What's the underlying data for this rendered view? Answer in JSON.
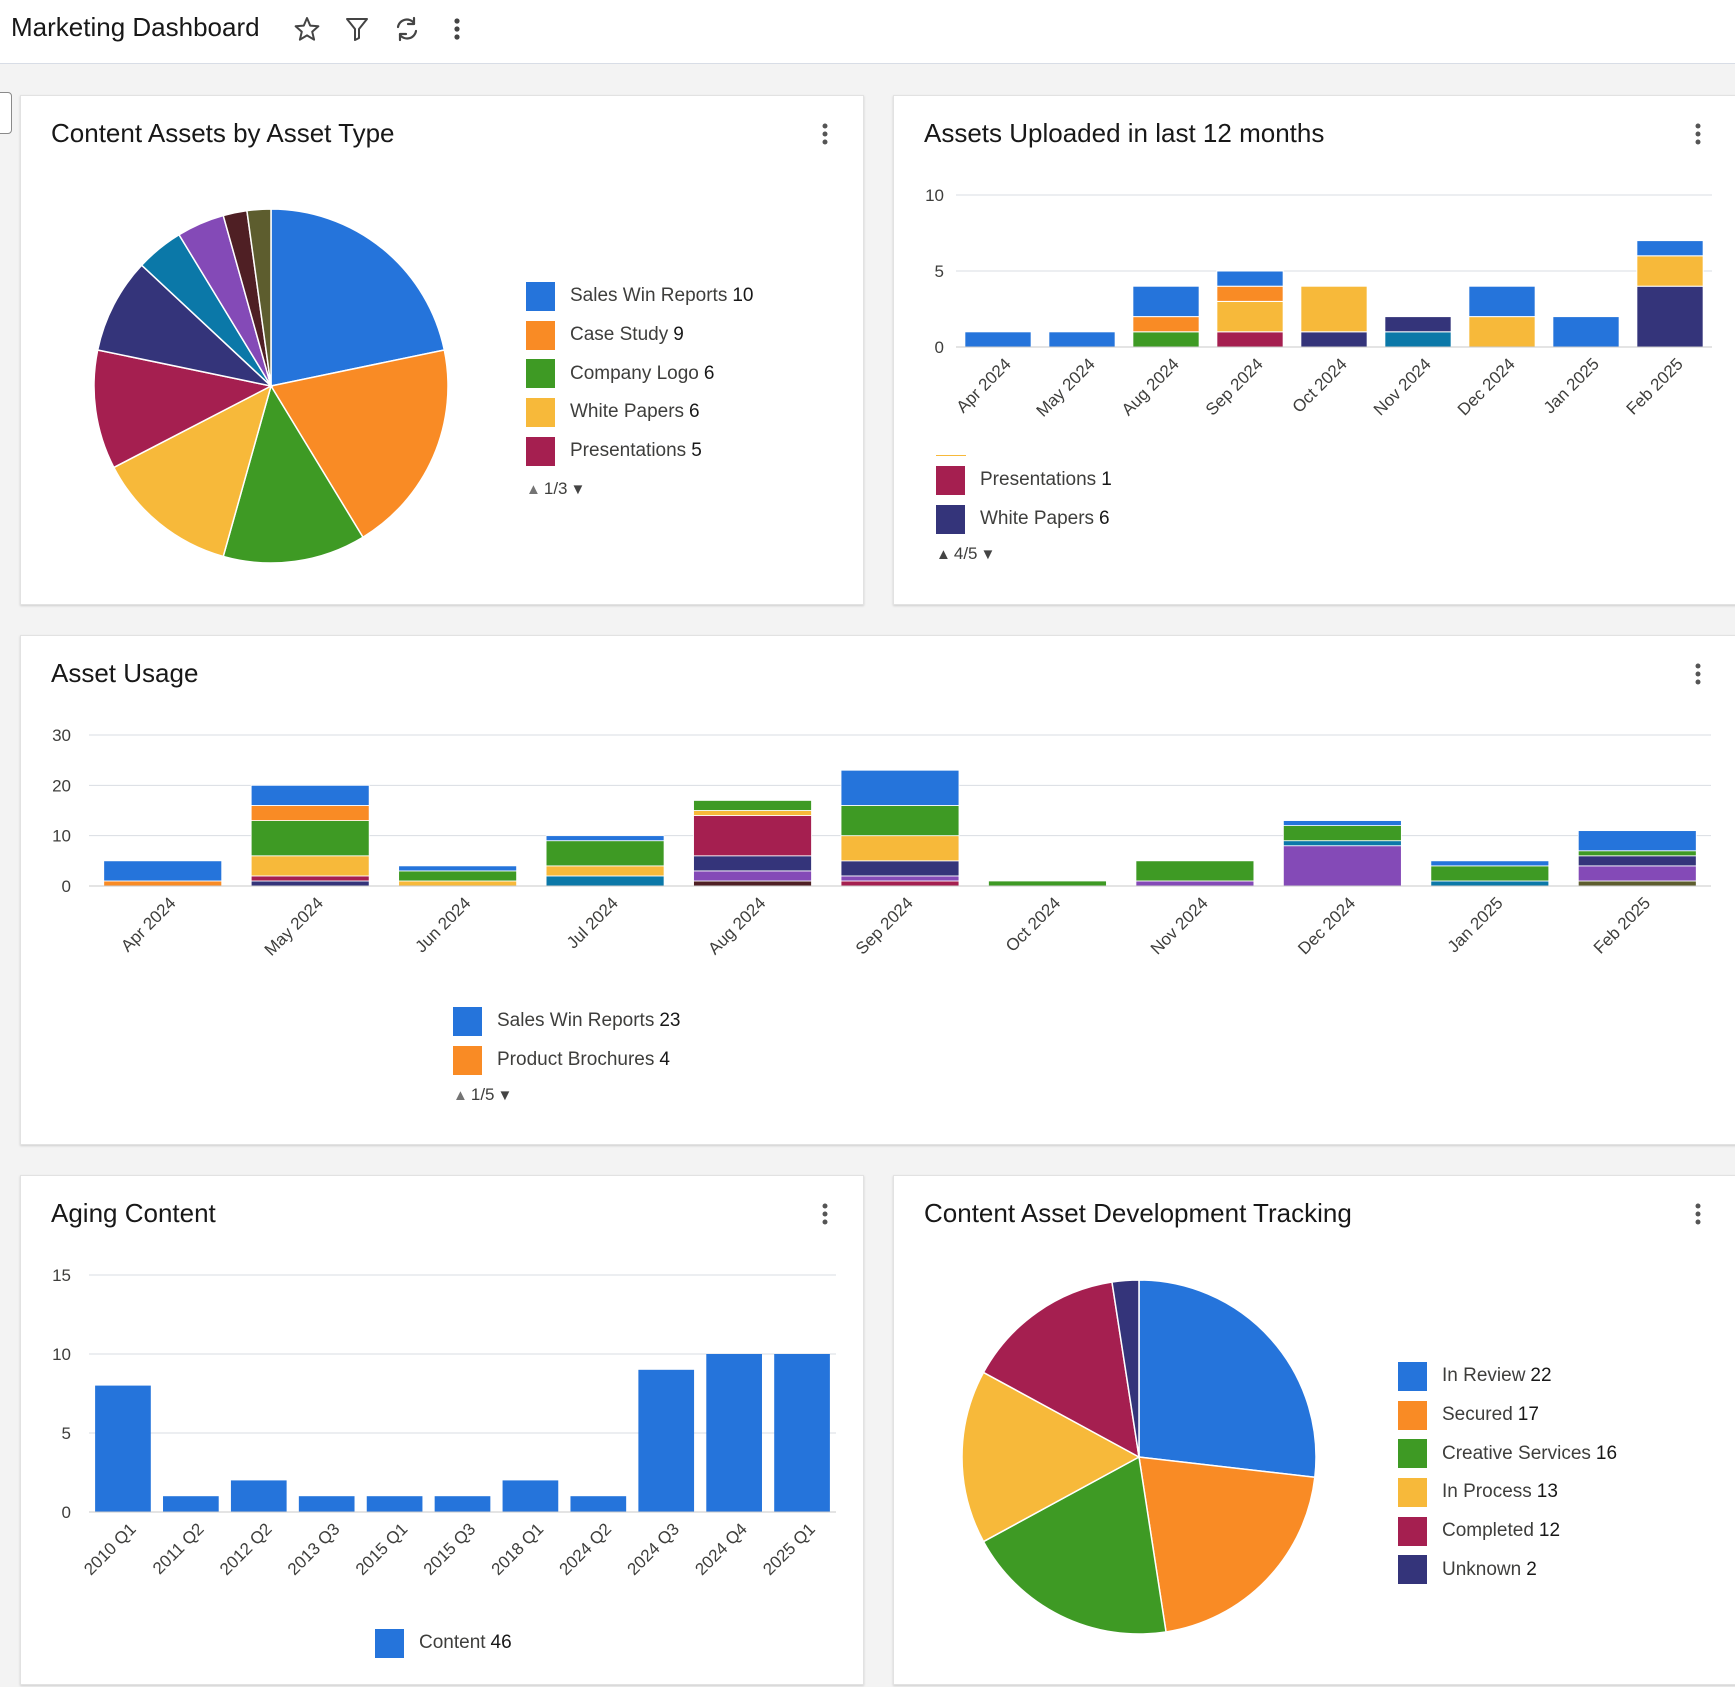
{
  "header": {
    "title": "Marketing Dashboard",
    "icons": [
      "star-icon",
      "filter-icon",
      "refresh-icon",
      "more-vertical-icon"
    ]
  },
  "colors": {
    "blue": "#2574db",
    "orange": "#f98b25",
    "green": "#3e9a24",
    "yellow": "#f7b93a",
    "magenta": "#a51f50",
    "navy": "#34347a",
    "teal": "#0b78a8",
    "purple": "#844ab7",
    "brown": "#4f1f24",
    "olive": "#5d5d2e"
  },
  "cards": {
    "content_assets": {
      "title": "Content Assets by Asset Type",
      "legend": [
        {
          "label": "Sales Win Reports",
          "value": "10",
          "color": "#2574db"
        },
        {
          "label": "Case Study",
          "value": "9",
          "color": "#f98b25"
        },
        {
          "label": "Company Logo",
          "value": "6",
          "color": "#3e9a24"
        },
        {
          "label": "White Papers",
          "value": "6",
          "color": "#f7b93a"
        },
        {
          "label": "Presentations",
          "value": "5",
          "color": "#a51f50"
        }
      ],
      "pager": "1/3"
    },
    "assets_uploaded": {
      "title": "Assets Uploaded in last 12 months",
      "legend": [
        {
          "label": "Presentations",
          "value": "1",
          "color": "#a51f50"
        },
        {
          "label": "White Papers",
          "value": "6",
          "color": "#34347a"
        }
      ],
      "pager": "4/5"
    },
    "asset_usage": {
      "title": "Asset Usage",
      "legend": [
        {
          "label": "Sales Win Reports",
          "value": "23",
          "color": "#2574db"
        },
        {
          "label": "Product Brochures",
          "value": "4",
          "color": "#f98b25"
        }
      ],
      "pager": "1/5"
    },
    "aging_content": {
      "title": "Aging Content",
      "legend": [
        {
          "label": "Content",
          "value": "46",
          "color": "#2574db"
        }
      ]
    },
    "development_tracking": {
      "title": "Content Asset Development Tracking",
      "legend": [
        {
          "label": "In Review",
          "value": "22",
          "color": "#2574db"
        },
        {
          "label": "Secured",
          "value": "17",
          "color": "#f98b25"
        },
        {
          "label": "Creative Services",
          "value": "16",
          "color": "#3e9a24"
        },
        {
          "label": "In Process",
          "value": "13",
          "color": "#f7b93a"
        },
        {
          "label": "Completed",
          "value": "12",
          "color": "#a51f50"
        },
        {
          "label": "Unknown",
          "value": "2",
          "color": "#34347a"
        }
      ]
    }
  },
  "chart_data": [
    {
      "id": "content_assets",
      "type": "pie",
      "title": "Content Assets by Asset Type",
      "slices": [
        {
          "value": 10,
          "color": "#2574db"
        },
        {
          "value": 9,
          "color": "#f98b25"
        },
        {
          "value": 6,
          "color": "#3e9a24"
        },
        {
          "value": 6,
          "color": "#f7b93a"
        },
        {
          "value": 5,
          "color": "#a51f50"
        },
        {
          "value": 4,
          "color": "#34347a"
        },
        {
          "value": 2,
          "color": "#0b78a8"
        },
        {
          "value": 2,
          "color": "#844ab7"
        },
        {
          "value": 1,
          "color": "#4f1f24"
        },
        {
          "value": 1,
          "color": "#5d5d2e"
        }
      ]
    },
    {
      "id": "assets_uploaded",
      "type": "bar",
      "stacked": true,
      "title": "Assets Uploaded in last 12 months",
      "categories": [
        "Apr 2024",
        "May 2024",
        "Aug 2024",
        "Sep 2024",
        "Oct 2024",
        "Nov 2024",
        "Dec 2024",
        "Jan 2025",
        "Feb 2025"
      ],
      "ylim": [
        0,
        10
      ],
      "yticks": [
        "0",
        "5",
        "10"
      ],
      "stacks": [
        [
          {
            "v": 1,
            "c": "#2574db"
          }
        ],
        [
          {
            "v": 1,
            "c": "#2574db"
          }
        ],
        [
          {
            "v": 1,
            "c": "#3e9a24"
          },
          {
            "v": 1,
            "c": "#f98b25"
          },
          {
            "v": 2,
            "c": "#2574db"
          }
        ],
        [
          {
            "v": 1,
            "c": "#a51f50"
          },
          {
            "v": 2,
            "c": "#f7b93a"
          },
          {
            "v": 1,
            "c": "#f98b25"
          },
          {
            "v": 1,
            "c": "#2574db"
          }
        ],
        [
          {
            "v": 1,
            "c": "#34347a"
          },
          {
            "v": 3,
            "c": "#f7b93a"
          }
        ],
        [
          {
            "v": 1,
            "c": "#0b78a8"
          },
          {
            "v": 1,
            "c": "#34347a"
          }
        ],
        [
          {
            "v": 2,
            "c": "#f7b93a"
          },
          {
            "v": 2,
            "c": "#2574db"
          }
        ],
        [
          {
            "v": 2,
            "c": "#2574db"
          }
        ],
        [
          {
            "v": 4,
            "c": "#34347a"
          },
          {
            "v": 2,
            "c": "#f7b93a"
          },
          {
            "v": 1,
            "c": "#2574db"
          }
        ]
      ]
    },
    {
      "id": "asset_usage",
      "type": "bar",
      "stacked": true,
      "title": "Asset Usage",
      "categories": [
        "Apr 2024",
        "May 2024",
        "Jun 2024",
        "Jul 2024",
        "Aug 2024",
        "Sep 2024",
        "Oct 2024",
        "Nov 2024",
        "Dec 2024",
        "Jan 2025",
        "Feb 2025"
      ],
      "ylim": [
        0,
        30
      ],
      "yticks": [
        "0",
        "10",
        "20",
        "30"
      ],
      "stacks": [
        [
          {
            "v": 1,
            "c": "#f98b25"
          },
          {
            "v": 4,
            "c": "#2574db"
          }
        ],
        [
          {
            "v": 1,
            "c": "#34347a"
          },
          {
            "v": 1,
            "c": "#a51f50"
          },
          {
            "v": 4,
            "c": "#f7b93a"
          },
          {
            "v": 7,
            "c": "#3e9a24"
          },
          {
            "v": 3,
            "c": "#f98b25"
          },
          {
            "v": 4,
            "c": "#2574db"
          }
        ],
        [
          {
            "v": 1,
            "c": "#f7b93a"
          },
          {
            "v": 2,
            "c": "#3e9a24"
          },
          {
            "v": 1,
            "c": "#2574db"
          }
        ],
        [
          {
            "v": 2,
            "c": "#0b78a8"
          },
          {
            "v": 2,
            "c": "#f7b93a"
          },
          {
            "v": 5,
            "c": "#3e9a24"
          },
          {
            "v": 1,
            "c": "#2574db"
          }
        ],
        [
          {
            "v": 1,
            "c": "#4f1f24"
          },
          {
            "v": 2,
            "c": "#844ab7"
          },
          {
            "v": 3,
            "c": "#34347a"
          },
          {
            "v": 8,
            "c": "#a51f50"
          },
          {
            "v": 1,
            "c": "#f7b93a"
          },
          {
            "v": 2,
            "c": "#3e9a24"
          }
        ],
        [
          {
            "v": 1,
            "c": "#a51f50"
          },
          {
            "v": 1,
            "c": "#844ab7"
          },
          {
            "v": 3,
            "c": "#34347a"
          },
          {
            "v": 5,
            "c": "#f7b93a"
          },
          {
            "v": 6,
            "c": "#3e9a24"
          },
          {
            "v": 7,
            "c": "#2574db"
          }
        ],
        [
          {
            "v": 1,
            "c": "#3e9a24"
          }
        ],
        [
          {
            "v": 1,
            "c": "#844ab7"
          },
          {
            "v": 4,
            "c": "#3e9a24"
          }
        ],
        [
          {
            "v": 8,
            "c": "#844ab7"
          },
          {
            "v": 1,
            "c": "#0b78a8"
          },
          {
            "v": 3,
            "c": "#3e9a24"
          },
          {
            "v": 1,
            "c": "#2574db"
          }
        ],
        [
          {
            "v": 1,
            "c": "#0b78a8"
          },
          {
            "v": 3,
            "c": "#3e9a24"
          },
          {
            "v": 1,
            "c": "#2574db"
          }
        ],
        [
          {
            "v": 1,
            "c": "#5d5d2e"
          },
          {
            "v": 3,
            "c": "#844ab7"
          },
          {
            "v": 2,
            "c": "#34347a"
          },
          {
            "v": 1,
            "c": "#3e9a24"
          },
          {
            "v": 4,
            "c": "#2574db"
          }
        ]
      ]
    },
    {
      "id": "aging_content",
      "type": "bar",
      "title": "Aging Content",
      "categories": [
        "2010 Q1",
        "2011 Q2",
        "2012 Q2",
        "2013 Q3",
        "2015 Q1",
        "2015 Q3",
        "2018 Q1",
        "2024 Q2",
        "2024 Q3",
        "2024 Q4",
        "2025 Q1"
      ],
      "values": [
        8,
        1,
        2,
        1,
        1,
        1,
        2,
        1,
        9,
        10,
        10
      ],
      "ylim": [
        0,
        15
      ],
      "yticks": [
        "0",
        "5",
        "10",
        "15"
      ],
      "series": [
        {
          "name": "Content",
          "color": "#2574db"
        }
      ]
    },
    {
      "id": "development_tracking",
      "type": "pie",
      "title": "Content Asset Development Tracking",
      "slices": [
        {
          "value": 22,
          "color": "#2574db"
        },
        {
          "value": 17,
          "color": "#f98b25"
        },
        {
          "value": 16,
          "color": "#3e9a24"
        },
        {
          "value": 13,
          "color": "#f7b93a"
        },
        {
          "value": 12,
          "color": "#a51f50"
        },
        {
          "value": 2,
          "color": "#34347a"
        }
      ]
    }
  ]
}
